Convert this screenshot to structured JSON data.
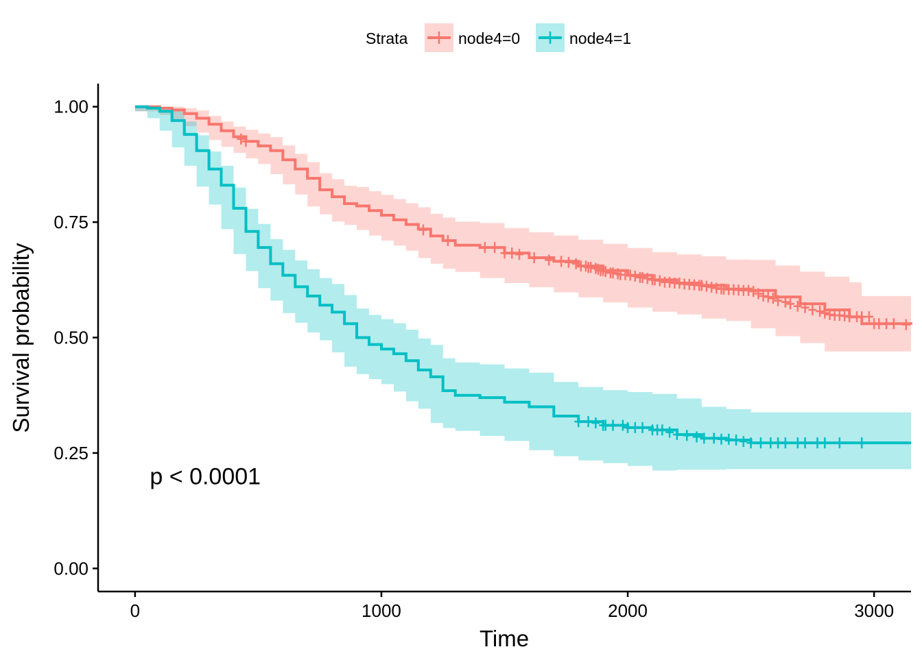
{
  "chart_data": {
    "type": "line",
    "subtype": "kaplan-meier",
    "title": "",
    "xlabel": "Time",
    "ylabel": "Survival probability",
    "xlim": [
      -150,
      3150
    ],
    "ylim": [
      -0.05,
      1.05
    ],
    "xticks": [
      0,
      1000,
      2000,
      3000
    ],
    "xtick_labels": [
      "0",
      "1000",
      "2000",
      "3000"
    ],
    "yticks": [
      0,
      0.25,
      0.5,
      0.75,
      1.0
    ],
    "ytick_labels": [
      "0.00",
      "0.25",
      "0.50",
      "0.75",
      "1.00"
    ],
    "grid": false,
    "legend": {
      "title": "Strata",
      "position": "top"
    },
    "annotation": {
      "text": "p < 0.0001",
      "x": 60,
      "y": 0.2
    },
    "series": [
      {
        "name": "node4=0",
        "color": "#F8766D",
        "fill": "#F8766D",
        "x": [
          0,
          100,
          150,
          200,
          250,
          300,
          350,
          400,
          450,
          500,
          550,
          600,
          650,
          700,
          750,
          800,
          850,
          900,
          950,
          1000,
          1050,
          1100,
          1150,
          1200,
          1250,
          1300,
          1400,
          1500,
          1600,
          1700,
          1800,
          1900,
          2000,
          2100,
          2200,
          2300,
          2400,
          2500,
          2600,
          2700,
          2800,
          2900,
          2950,
          3150
        ],
        "y": [
          1.0,
          0.997,
          0.993,
          0.985,
          0.975,
          0.962,
          0.948,
          0.935,
          0.925,
          0.915,
          0.905,
          0.885,
          0.865,
          0.845,
          0.82,
          0.805,
          0.79,
          0.785,
          0.775,
          0.765,
          0.755,
          0.745,
          0.735,
          0.72,
          0.71,
          0.7,
          0.695,
          0.683,
          0.673,
          0.665,
          0.655,
          0.645,
          0.635,
          0.625,
          0.618,
          0.613,
          0.605,
          0.602,
          0.588,
          0.573,
          0.56,
          0.545,
          0.53,
          0.528
        ],
        "lower": [
          1.0,
          0.99,
          0.982,
          0.97,
          0.958,
          0.944,
          0.928,
          0.913,
          0.9,
          0.888,
          0.876,
          0.854,
          0.832,
          0.81,
          0.784,
          0.767,
          0.751,
          0.744,
          0.733,
          0.721,
          0.71,
          0.699,
          0.688,
          0.672,
          0.66,
          0.649,
          0.642,
          0.629,
          0.618,
          0.609,
          0.598,
          0.587,
          0.576,
          0.565,
          0.556,
          0.55,
          0.541,
          0.536,
          0.52,
          0.503,
          0.488,
          0.47,
          0.47,
          0.47
        ],
        "upper": [
          1.0,
          1.0,
          1.0,
          0.997,
          0.992,
          0.98,
          0.968,
          0.957,
          0.95,
          0.942,
          0.934,
          0.916,
          0.898,
          0.88,
          0.856,
          0.843,
          0.829,
          0.826,
          0.817,
          0.809,
          0.8,
          0.791,
          0.782,
          0.768,
          0.76,
          0.751,
          0.748,
          0.737,
          0.728,
          0.721,
          0.712,
          0.703,
          0.694,
          0.685,
          0.68,
          0.676,
          0.669,
          0.668,
          0.656,
          0.643,
          0.632,
          0.62,
          0.59,
          0.59
        ],
        "censor_x": [
          430,
          450,
          1170,
          1270,
          1420,
          1460,
          1500,
          1530,
          1560,
          1620,
          1680,
          1730,
          1760,
          1790,
          1810,
          1830,
          1840,
          1850,
          1870,
          1880,
          1890,
          1900,
          1910,
          1930,
          1940,
          1960,
          1970,
          1990,
          2010,
          2030,
          2050,
          2060,
          2080,
          2100,
          2110,
          2130,
          2150,
          2170,
          2190,
          2210,
          2230,
          2250,
          2270,
          2290,
          2300,
          2320,
          2340,
          2360,
          2380,
          2390,
          2410,
          2430,
          2450,
          2470,
          2490,
          2510,
          2530,
          2550,
          2570,
          2590,
          2610,
          2640,
          2660,
          2690,
          2720,
          2750,
          2780,
          2800,
          2820,
          2840,
          2860,
          2880,
          2900,
          2930,
          2950,
          2980,
          3000,
          3020,
          3050,
          3080,
          3130
        ],
        "censor_y": [
          0.93,
          0.925,
          0.733,
          0.71,
          0.695,
          0.695,
          0.683,
          0.683,
          0.68,
          0.673,
          0.668,
          0.665,
          0.663,
          0.66,
          0.655,
          0.655,
          0.652,
          0.652,
          0.65,
          0.648,
          0.645,
          0.645,
          0.643,
          0.64,
          0.64,
          0.638,
          0.636,
          0.636,
          0.635,
          0.633,
          0.63,
          0.63,
          0.628,
          0.625,
          0.625,
          0.623,
          0.62,
          0.62,
          0.618,
          0.618,
          0.616,
          0.615,
          0.614,
          0.613,
          0.613,
          0.611,
          0.609,
          0.607,
          0.605,
          0.605,
          0.604,
          0.604,
          0.603,
          0.602,
          0.602,
          0.6,
          0.595,
          0.59,
          0.588,
          0.585,
          0.58,
          0.577,
          0.573,
          0.568,
          0.565,
          0.56,
          0.557,
          0.553,
          0.55,
          0.548,
          0.548,
          0.547,
          0.545,
          0.545,
          0.545,
          0.545,
          0.53,
          0.53,
          0.53,
          0.53,
          0.528
        ]
      },
      {
        "name": "node4=1",
        "color": "#00BFC4",
        "fill": "#00BFC4",
        "x": [
          0,
          50,
          100,
          150,
          200,
          250,
          300,
          350,
          400,
          450,
          500,
          550,
          600,
          650,
          700,
          750,
          800,
          850,
          900,
          950,
          1000,
          1050,
          1100,
          1150,
          1200,
          1250,
          1300,
          1400,
          1500,
          1600,
          1700,
          1800,
          1900,
          2000,
          2100,
          2200,
          2300,
          2400,
          2500,
          2600,
          2700,
          2800,
          2900,
          3150
        ],
        "y": [
          1.0,
          0.997,
          0.99,
          0.97,
          0.94,
          0.905,
          0.865,
          0.83,
          0.78,
          0.73,
          0.695,
          0.66,
          0.635,
          0.61,
          0.59,
          0.57,
          0.555,
          0.53,
          0.5,
          0.485,
          0.475,
          0.465,
          0.45,
          0.43,
          0.415,
          0.385,
          0.375,
          0.37,
          0.36,
          0.35,
          0.33,
          0.318,
          0.31,
          0.305,
          0.3,
          0.29,
          0.282,
          0.278,
          0.272,
          0.272,
          0.272,
          0.272,
          0.272,
          0.272
        ],
        "lower": [
          1.0,
          0.99,
          0.975,
          0.948,
          0.912,
          0.872,
          0.827,
          0.788,
          0.735,
          0.681,
          0.644,
          0.607,
          0.58,
          0.553,
          0.532,
          0.511,
          0.494,
          0.468,
          0.437,
          0.421,
          0.41,
          0.399,
          0.383,
          0.362,
          0.346,
          0.315,
          0.304,
          0.298,
          0.287,
          0.276,
          0.256,
          0.243,
          0.234,
          0.228,
          0.222,
          0.212,
          0.214,
          0.214,
          0.215,
          0.215,
          0.215,
          0.215,
          0.215,
          0.215
        ],
        "upper": [
          1.0,
          1.0,
          1.0,
          0.992,
          0.968,
          0.938,
          0.903,
          0.872,
          0.825,
          0.779,
          0.746,
          0.713,
          0.69,
          0.667,
          0.648,
          0.629,
          0.616,
          0.592,
          0.563,
          0.549,
          0.54,
          0.531,
          0.517,
          0.498,
          0.484,
          0.455,
          0.446,
          0.442,
          0.433,
          0.424,
          0.404,
          0.393,
          0.386,
          0.382,
          0.378,
          0.368,
          0.35,
          0.345,
          0.338,
          0.338,
          0.338,
          0.338,
          0.338,
          0.338
        ],
        "censor_x": [
          1800,
          1840,
          1870,
          1900,
          1910,
          1940,
          1980,
          2000,
          2030,
          2060,
          2100,
          2120,
          2140,
          2170,
          2200,
          2240,
          2280,
          2310,
          2350,
          2380,
          2410,
          2440,
          2470,
          2500,
          2540,
          2580,
          2610,
          2640,
          2690,
          2720,
          2770,
          2800,
          2860,
          2950
        ],
        "censor_y": [
          0.318,
          0.318,
          0.315,
          0.31,
          0.31,
          0.31,
          0.31,
          0.305,
          0.305,
          0.305,
          0.3,
          0.3,
          0.3,
          0.295,
          0.29,
          0.288,
          0.285,
          0.282,
          0.282,
          0.28,
          0.28,
          0.278,
          0.275,
          0.272,
          0.272,
          0.272,
          0.272,
          0.272,
          0.272,
          0.272,
          0.272,
          0.272,
          0.272,
          0.272
        ]
      }
    ]
  }
}
